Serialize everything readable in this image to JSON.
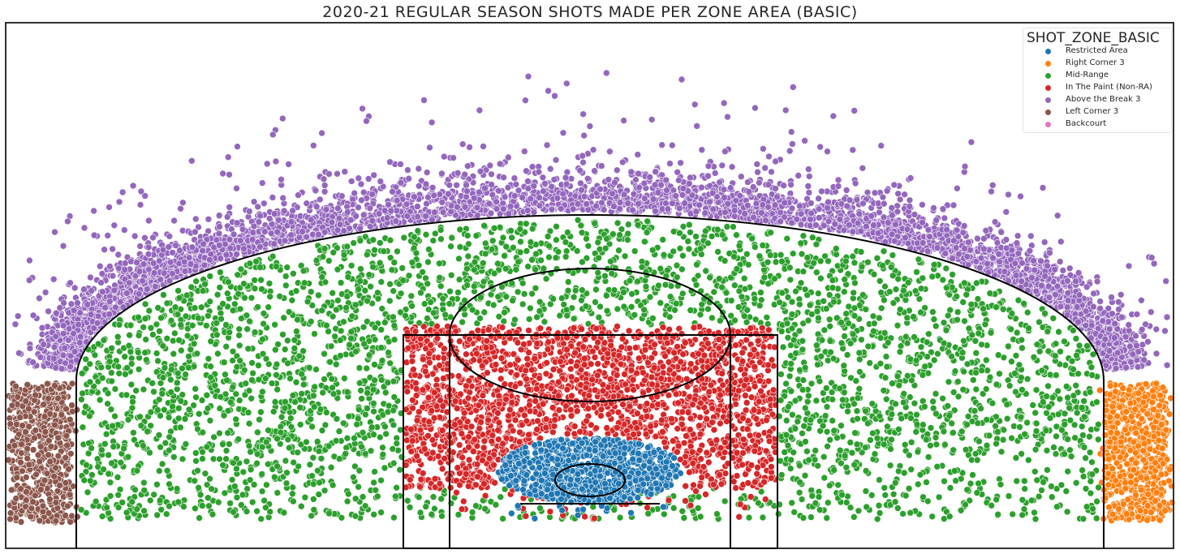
{
  "chart_title": "2020-21 REGULAR SEASON SHOTS MADE PER ZONE AREA (BASIC)",
  "legend": {
    "title": "SHOT_ZONE_BASIC",
    "placement": "top-right"
  },
  "chart_data": {
    "type": "scatter",
    "title": "2020-21 REGULAR SEASON SHOTS MADE PER ZONE AREA (BASIC)",
    "xlabel": "",
    "ylabel": "",
    "grid": false,
    "axes_visible": false,
    "xlim": [
      -250,
      250
    ],
    "ylim": [
      -47.5,
      175
    ],
    "court_lines": true,
    "series": [
      {
        "name": "Restricted Area",
        "color": "#1f77b4"
      },
      {
        "name": "Right Corner 3",
        "color": "#ff7f0e"
      },
      {
        "name": "Mid-Range",
        "color": "#2ca02c"
      },
      {
        "name": "In The Paint (Non-RA)",
        "color": "#d62728"
      },
      {
        "name": "Above the Break 3",
        "color": "#9467bd"
      },
      {
        "name": "Left Corner 3",
        "color": "#8c564b"
      },
      {
        "name": "Backcourt",
        "color": "#e377c2"
      }
    ]
  }
}
